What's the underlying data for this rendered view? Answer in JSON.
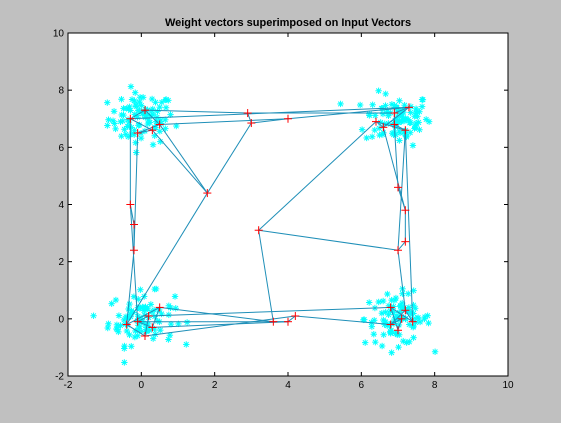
{
  "figure": {
    "background_color": "#c0c0c0",
    "axes_background_color": "#ffffff"
  },
  "chart_data": {
    "type": "scatter",
    "title": "Weight vectors superimposed on Input Vectors",
    "xlabel": "",
    "ylabel": "",
    "xlim": [
      -2,
      10
    ],
    "ylim": [
      -2,
      10
    ],
    "xticks": [
      -2,
      0,
      2,
      4,
      6,
      8,
      10
    ],
    "yticks": [
      -2,
      0,
      2,
      4,
      6,
      8,
      10
    ],
    "grid": false,
    "legend": "none",
    "input_clusters": {
      "marker": "asterisk",
      "color": "#00ffff",
      "points_per_cluster": 90,
      "spread": 0.45,
      "centers": [
        [
          0,
          7
        ],
        [
          7,
          7
        ],
        [
          0,
          0
        ],
        [
          7,
          0
        ]
      ]
    },
    "weights": {
      "marker": "plus",
      "marker_color": "#ff0000",
      "line_color": "#1f8fb8",
      "points": [
        [
          -0.3,
          7.0
        ],
        [
          0.1,
          7.3
        ],
        [
          0.5,
          6.8
        ],
        [
          -0.1,
          6.5
        ],
        [
          0.3,
          6.6
        ],
        [
          2.9,
          7.2
        ],
        [
          3.0,
          6.85
        ],
        [
          4.0,
          7.0
        ],
        [
          6.9,
          7.2
        ],
        [
          7.3,
          7.4
        ],
        [
          6.6,
          6.7
        ],
        [
          6.4,
          6.9
        ],
        [
          7.2,
          6.6
        ],
        [
          6.9,
          6.8
        ],
        [
          1.8,
          4.4
        ],
        [
          3.2,
          3.1
        ],
        [
          -0.3,
          4.0
        ],
        [
          -0.2,
          3.3
        ],
        [
          -0.2,
          2.4
        ],
        [
          7.0,
          4.6
        ],
        [
          7.2,
          3.8
        ],
        [
          7.2,
          2.7
        ],
        [
          7.0,
          2.4
        ],
        [
          -0.1,
          -0.1
        ],
        [
          0.3,
          -0.3
        ],
        [
          0.5,
          0.4
        ],
        [
          -0.4,
          -0.2
        ],
        [
          0.1,
          -0.6
        ],
        [
          0.2,
          0.1
        ],
        [
          3.6,
          -0.1
        ],
        [
          4.0,
          -0.1
        ],
        [
          4.2,
          0.1
        ],
        [
          6.8,
          -0.2
        ],
        [
          7.2,
          0.3
        ],
        [
          7.4,
          -0.1
        ],
        [
          6.8,
          0.4
        ],
        [
          7.0,
          -0.4
        ],
        [
          7.1,
          0.0
        ]
      ],
      "connections": [
        [
          0,
          1
        ],
        [
          1,
          2
        ],
        [
          2,
          3
        ],
        [
          3,
          4
        ],
        [
          0,
          4
        ],
        [
          1,
          5
        ],
        [
          5,
          6
        ],
        [
          6,
          7
        ],
        [
          5,
          8
        ],
        [
          7,
          9
        ],
        [
          8,
          9
        ],
        [
          9,
          10
        ],
        [
          10,
          11
        ],
        [
          11,
          12
        ],
        [
          12,
          13
        ],
        [
          8,
          13
        ],
        [
          2,
          7
        ],
        [
          0,
          9
        ],
        [
          0,
          16
        ],
        [
          16,
          17
        ],
        [
          17,
          18
        ],
        [
          18,
          26
        ],
        [
          3,
          18
        ],
        [
          16,
          23
        ],
        [
          6,
          14
        ],
        [
          14,
          2
        ],
        [
          14,
          26
        ],
        [
          14,
          4
        ],
        [
          11,
          15
        ],
        [
          15,
          22
        ],
        [
          15,
          29
        ],
        [
          13,
          19
        ],
        [
          19,
          20
        ],
        [
          20,
          21
        ],
        [
          21,
          22
        ],
        [
          22,
          33
        ],
        [
          12,
          22
        ],
        [
          10,
          20
        ],
        [
          12,
          34
        ],
        [
          23,
          24
        ],
        [
          24,
          25
        ],
        [
          25,
          26
        ],
        [
          26,
          27
        ],
        [
          27,
          28
        ],
        [
          28,
          23
        ],
        [
          25,
          29
        ],
        [
          24,
          30
        ],
        [
          29,
          30
        ],
        [
          30,
          31
        ],
        [
          31,
          32
        ],
        [
          32,
          33
        ],
        [
          33,
          34
        ],
        [
          34,
          35
        ],
        [
          35,
          36
        ],
        [
          36,
          37
        ],
        [
          37,
          32
        ],
        [
          28,
          35
        ],
        [
          27,
          31
        ],
        [
          23,
          30
        ]
      ]
    }
  }
}
